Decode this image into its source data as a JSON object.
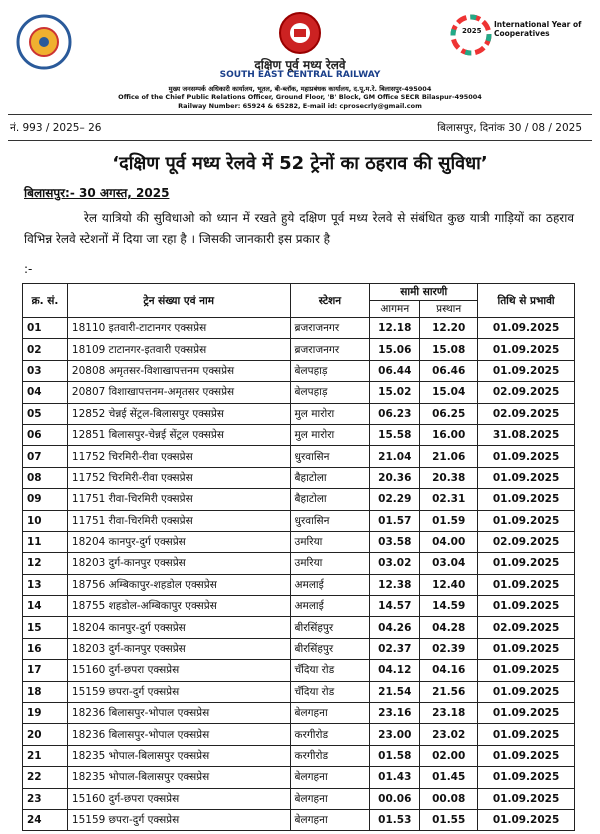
{
  "header": {
    "org_hindi": "दक्षिण पूर्व मध्य रेलवे",
    "org_english": "SOUTH EAST CENTRAL RAILWAY",
    "address_hindi": "मुख्य जनसम्पर्क अधिकारी कार्यालय, भूतल, बी-ब्लॉक, महाप्रबंधक कार्यालय, द.पू.म.रे. बिलासपुर-495004",
    "address_english": "Office of the Chief Public Relations Officer, Ground Floor, 'B' Block, GM Office SECR Bilaspur-495004",
    "contact": "Railway Number: 65924 & 65282, E-mail id: cprosecrly@gmail.com",
    "logo_right_title": "International Year of Cooperatives",
    "logo_right_year": "2025"
  },
  "ref": {
    "number": "नं. 993 / 2025– 26",
    "date": "बिलासपुर, दिनांक 30 / 08 / 2025"
  },
  "title": "‘दक्षिण पूर्व मध्य रेलवे में 52 ट्रेनों का ठहराव की सुविधा’",
  "dateline": "बिलासपुर:- 30 अगस्त, 2025",
  "paragraph": "रेल यात्रियो की सुविधाओ को ध्यान में रखते हुये दक्षिण पूर्व मध्य रेलवे से संबंधित कुछ यात्री गाड़ियों का ठहराव विभिन्न रेलवे स्टेशनों में दिया जा रहा है । जिसकी जानकारी इस प्रकार है",
  "paragraph_end": ":-",
  "table": {
    "headers": {
      "sno": "क्र. सं.",
      "train": "ट्रेन संख्या एवं नाम",
      "station": "स्टेशन",
      "timetable": "सामी सारणी",
      "arrival": "आगमन",
      "departure": "प्रस्थान",
      "effective": "तिथि से प्रभावी"
    },
    "rows": [
      [
        "01",
        "18110 इतवारी-टाटानगर एक्सप्रेस",
        "ब्रजराजनगर",
        "12.18",
        "12.20",
        "01.09.2025"
      ],
      [
        "02",
        "18109 टाटानगर-इतवारी एक्सप्रेस",
        "ब्रजराजनगर",
        "15.06",
        "15.08",
        "01.09.2025"
      ],
      [
        "03",
        "20808 अमृतसर-विशाखापत्तनम एक्सप्रेस",
        "बेलपहाड़",
        "06.44",
        "06.46",
        "01.09.2025"
      ],
      [
        "04",
        "20807 विशाखापत्तनम-अमृतसर एक्सप्रेस",
        "बेलपहाड़",
        "15.02",
        "15.04",
        "02.09.2025"
      ],
      [
        "05",
        "12852 चेन्नई सेंट्रल-बिलासपुर एक्सप्रेस",
        "मुल मारोरा",
        "06.23",
        "06.25",
        "02.09.2025"
      ],
      [
        "06",
        "12851 बिलासपुर-चेन्नई सेंट्रल एक्सप्रेस",
        "मुल मारोरा",
        "15.58",
        "16.00",
        "31.08.2025"
      ],
      [
        "07",
        "11752 चिरमिरी-रीवा एक्सप्रेस",
        "धुरवासिन",
        "21.04",
        "21.06",
        "01.09.2025"
      ],
      [
        "08",
        "11752 चिरमिरी-रीवा एक्सप्रेस",
        "बैहाटोला",
        "20.36",
        "20.38",
        "01.09.2025"
      ],
      [
        "09",
        "11751 रीवा-चिरमिरी एक्सप्रेस",
        "बैहाटोला",
        "02.29",
        "02.31",
        "01.09.2025"
      ],
      [
        "10",
        "11751 रीवा-चिरमिरी एक्सप्रेस",
        "धुरवासिन",
        "01.57",
        "01.59",
        "01.09.2025"
      ],
      [
        "11",
        "18204 कानपुर-दुर्ग एक्सप्रेस",
        "उमरिया",
        "03.58",
        "04.00",
        "02.09.2025"
      ],
      [
        "12",
        "18203 दुर्ग-कानपुर एक्सप्रेस",
        "उमरिया",
        "03.02",
        "03.04",
        "01.09.2025"
      ],
      [
        "13",
        "18756 अम्बिकापुर-शहडोल एक्सप्रेस",
        "अमलाई",
        "12.38",
        "12.40",
        "01.09.2025"
      ],
      [
        "14",
        "18755 शहडोल-अम्बिकापुर एक्सप्रेस",
        "अमलाई",
        "14.57",
        "14.59",
        "01.09.2025"
      ],
      [
        "15",
        "18204 कानपुर-दुर्ग एक्सप्रेस",
        "बीरसिंहपुर",
        "04.26",
        "04.28",
        "02.09.2025"
      ],
      [
        "16",
        "18203 दुर्ग-कानपुर एक्सप्रेस",
        "बीरसिंहपुर",
        "02.37",
        "02.39",
        "01.09.2025"
      ],
      [
        "17",
        "15160 दुर्ग-छपरा एक्सप्रेस",
        "चँदिया रोड",
        "04.12",
        "04.16",
        "01.09.2025"
      ],
      [
        "18",
        "15159 छपरा-दुर्ग एक्सप्रेस",
        "चँदिया रोड",
        "21.54",
        "21.56",
        "01.09.2025"
      ],
      [
        "19",
        "18236 बिलासपुर-भोपाल एक्सप्रेस",
        "बेलगहना",
        "23.16",
        "23.18",
        "01.09.2025"
      ],
      [
        "20",
        "18236 बिलासपुर-भोपाल एक्सप्रेस",
        "करगीरोड",
        "23.00",
        "23.02",
        "01.09.2025"
      ],
      [
        "21",
        "18235 भोपाल-बिलासपुर एक्सप्रेस",
        "करगीरोड",
        "01.58",
        "02.00",
        "01.09.2025"
      ],
      [
        "22",
        "18235 भोपाल-बिलासपुर एक्सप्रेस",
        "बेलगहना",
        "01.43",
        "01.45",
        "01.09.2025"
      ],
      [
        "23",
        "15160 दुर्ग-छपरा एक्सप्रेस",
        "बेलगहना",
        "00.06",
        "00.08",
        "01.09.2025"
      ],
      [
        "24",
        "15159 छपरा-दुर्ग एक्सप्रेस",
        "बेलगहना",
        "01.53",
        "01.55",
        "01.09.2025"
      ]
    ]
  }
}
